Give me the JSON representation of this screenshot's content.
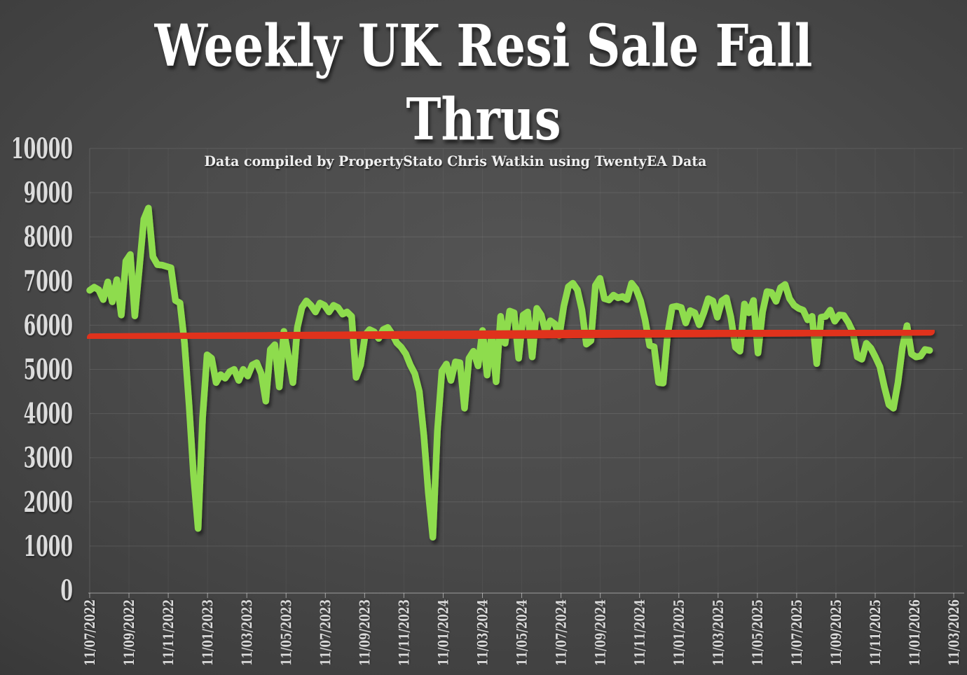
{
  "slide": {
    "title": "Weekly UK Resi Sale Fall Thrus",
    "subtitle": "Data compiled by PropertyStato Chris Watkin using TwentyEA Data"
  },
  "colors": {
    "background_center": "#545454",
    "background_edge": "#262626",
    "series_green": "#8edc4e",
    "trend_red": "#e0321f",
    "axis_text": "#dcdcdc",
    "title_text": "#ffffff"
  },
  "chart_data": {
    "type": "line",
    "title": "Weekly UK Resi Sale Fall Thrus",
    "subtitle": "Data compiled by PropertyStato Chris Watkin using TwentyEA Data",
    "grid": true,
    "legend_position": "none",
    "ylim": [
      0,
      10000
    ],
    "y_tick_step": 1000,
    "y_tick_labels": [
      "0",
      "1000",
      "2000",
      "3000",
      "4000",
      "5000",
      "6000",
      "7000",
      "8000",
      "9000",
      "10000"
    ],
    "x_tick_labels": [
      "11/07/2022",
      "11/09/2022",
      "11/11/2022",
      "11/01/2023",
      "11/03/2023",
      "11/05/2023",
      "11/07/2023",
      "11/09/2023",
      "11/11/2023",
      "11/01/2024",
      "11/03/2024",
      "11/05/2024",
      "11/07/2024",
      "11/09/2024",
      "11/11/2024",
      "11/01/2025",
      "11/03/2025",
      "11/05/2025",
      "11/07/2025",
      "11/09/2025",
      "11/11/2025",
      "11/01/2026",
      "11/03/2026"
    ],
    "series": [
      {
        "name": "Weekly UK residential sale fall throughs",
        "color": "#8edc4e",
        "frequency": "weekly",
        "first_week": "11/07/2022",
        "values": [
          6790,
          6860,
          6800,
          6580,
          6980,
          6530,
          7030,
          6230,
          7450,
          7600,
          6210,
          7300,
          8400,
          8650,
          7550,
          7370,
          7360,
          7330,
          7300,
          6560,
          6500,
          5600,
          4200,
          2600,
          1400,
          3900,
          5330,
          5250,
          4700,
          4880,
          4800,
          4950,
          5000,
          4750,
          5000,
          4850,
          5100,
          5150,
          4900,
          4280,
          5450,
          5560,
          4600,
          5860,
          5300,
          4700,
          5950,
          6400,
          6550,
          6450,
          6300,
          6500,
          6450,
          6300,
          6450,
          6400,
          6250,
          6300,
          6200,
          4820,
          5100,
          5780,
          5900,
          5850,
          5700,
          5900,
          5950,
          5800,
          5600,
          5500,
          5350,
          5100,
          4900,
          4500,
          3500,
          2200,
          1200,
          3600,
          4960,
          5120,
          4750,
          5170,
          5150,
          4120,
          5250,
          5410,
          5080,
          5880,
          4870,
          5800,
          4720,
          6200,
          5590,
          6320,
          6280,
          5250,
          6230,
          6300,
          5280,
          6380,
          6230,
          5830,
          6100,
          6030,
          5760,
          6430,
          6870,
          6950,
          6800,
          6350,
          5570,
          5650,
          6900,
          7060,
          6600,
          6570,
          6680,
          6620,
          6650,
          6580,
          6950,
          6820,
          6550,
          6120,
          5540,
          5510,
          4700,
          4690,
          5800,
          6410,
          6430,
          6400,
          6050,
          6330,
          6280,
          6010,
          6280,
          6600,
          6550,
          6180,
          6550,
          6620,
          6180,
          5500,
          5410,
          6480,
          6280,
          6560,
          5370,
          6300,
          6760,
          6740,
          6540,
          6850,
          6920,
          6600,
          6450,
          6380,
          6340,
          6120,
          6200,
          5130,
          6180,
          6200,
          6340,
          6090,
          6230,
          6220,
          6060,
          5850,
          5280,
          5230,
          5590,
          5480,
          5280,
          5060,
          4600,
          4200,
          4120,
          4700,
          5500,
          5990,
          5350,
          5280,
          5300,
          5450,
          5430
        ]
      }
    ],
    "trendline": {
      "name": "linear trend",
      "color": "#e0321f",
      "start_value": 5720,
      "end_value": 5860
    }
  }
}
